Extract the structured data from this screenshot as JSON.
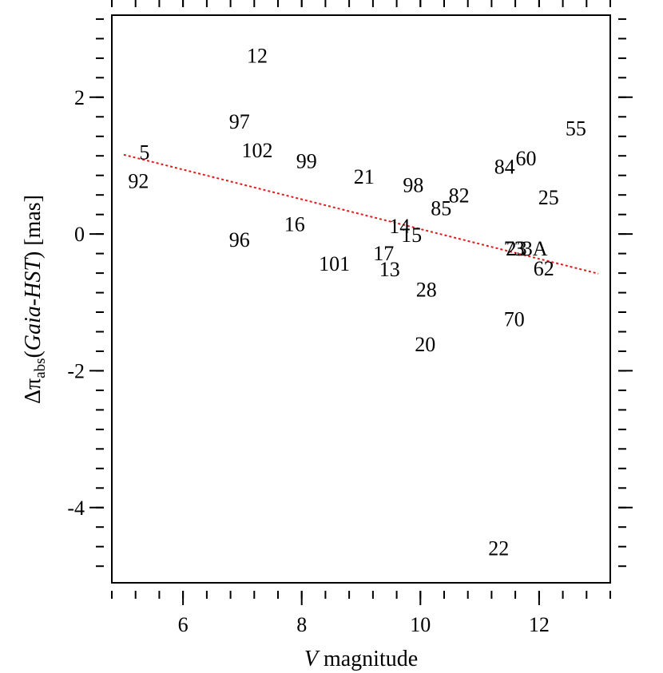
{
  "chart_data": {
    "type": "scatter",
    "marker": "text-labels",
    "xlabel": {
      "italic": "V",
      "rest": " magnitude"
    },
    "ylabel": {
      "delta": "Δπ",
      "sub": "abs",
      "open": "(",
      "italic": "Gaia-HST",
      "close": ") [mas]"
    },
    "xlim": [
      4.8,
      13.2
    ],
    "ylim": [
      -5.1,
      3.2
    ],
    "x_ticks": [
      6,
      8,
      10,
      12
    ],
    "y_ticks": [
      -4,
      -2,
      0,
      2
    ],
    "x_tick_labels": [
      "6",
      "8",
      "10",
      "12"
    ],
    "y_tick_labels": [
      "-4",
      "-2",
      "0",
      "2"
    ],
    "x_minor_step": 0.4,
    "y_minor_step": 0.2857,
    "points": [
      {
        "label": "12",
        "x": 7.25,
        "y": 2.61
      },
      {
        "label": "97",
        "x": 6.95,
        "y": 1.65
      },
      {
        "label": "5",
        "x": 5.35,
        "y": 1.2
      },
      {
        "label": "102",
        "x": 7.25,
        "y": 1.23
      },
      {
        "label": "99",
        "x": 8.08,
        "y": 1.07
      },
      {
        "label": "92",
        "x": 5.25,
        "y": 0.78
      },
      {
        "label": "21",
        "x": 9.05,
        "y": 0.84
      },
      {
        "label": "98",
        "x": 9.88,
        "y": 0.72
      },
      {
        "label": "84",
        "x": 11.42,
        "y": 0.99
      },
      {
        "label": "60",
        "x": 11.78,
        "y": 1.11
      },
      {
        "label": "55",
        "x": 12.62,
        "y": 1.55
      },
      {
        "label": "25",
        "x": 12.16,
        "y": 0.54
      },
      {
        "label": "82",
        "x": 10.65,
        "y": 0.57
      },
      {
        "label": "85",
        "x": 10.35,
        "y": 0.38
      },
      {
        "label": "16",
        "x": 7.88,
        "y": 0.15
      },
      {
        "label": "14",
        "x": 9.65,
        "y": 0.12
      },
      {
        "label": "15",
        "x": 9.85,
        "y": -0.01
      },
      {
        "label": "96",
        "x": 6.95,
        "y": -0.08
      },
      {
        "label": "17",
        "x": 9.38,
        "y": -0.28
      },
      {
        "label": "101",
        "x": 8.55,
        "y": -0.43
      },
      {
        "label": "13",
        "x": 9.48,
        "y": -0.51
      },
      {
        "label": "28",
        "x": 10.1,
        "y": -0.81
      },
      {
        "label": "73",
        "x": 11.58,
        "y": -0.21
      },
      {
        "label": "23",
        "x": 11.62,
        "y": -0.21
      },
      {
        "label": "3A",
        "x": 11.93,
        "y": -0.21
      },
      {
        "label": "62",
        "x": 12.08,
        "y": -0.5
      },
      {
        "label": "70",
        "x": 11.58,
        "y": -1.24
      },
      {
        "label": "20",
        "x": 10.08,
        "y": -1.61
      },
      {
        "label": "22",
        "x": 11.32,
        "y": -4.59
      }
    ],
    "fit_line": {
      "style": "dotted",
      "color": "#e41a1c",
      "x": [
        5.0,
        13.0
      ],
      "y": [
        1.16,
        -0.58
      ]
    },
    "grid": false,
    "legend": "none"
  }
}
